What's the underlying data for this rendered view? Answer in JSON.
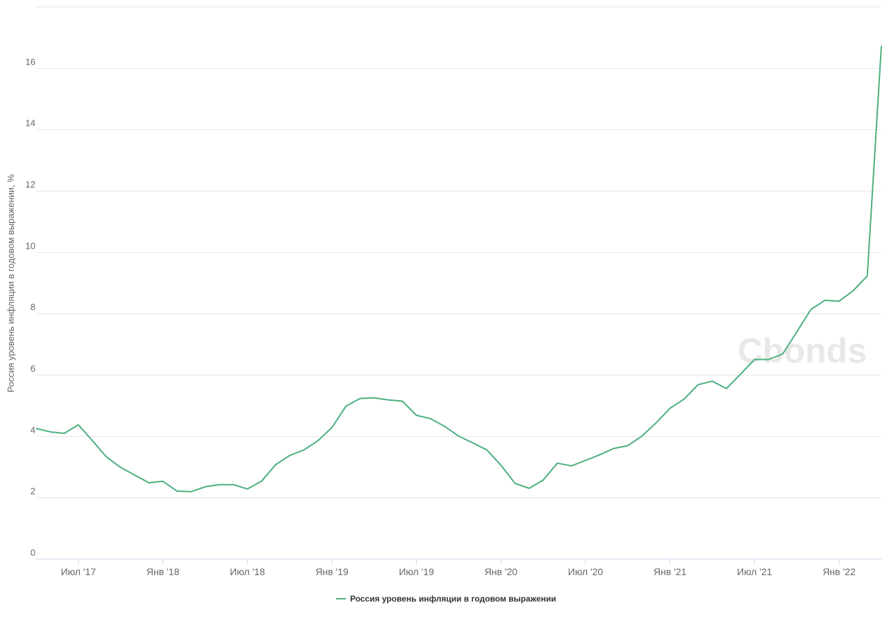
{
  "chart_data": {
    "type": "line",
    "ylabel": "Россия уровень инфляции в годовом выражении, %",
    "watermark": "Cbonds",
    "x": [
      "2017-04",
      "2017-05",
      "2017-06",
      "2017-07",
      "2017-08",
      "2017-09",
      "2017-10",
      "2017-11",
      "2017-12",
      "2018-01",
      "2018-02",
      "2018-03",
      "2018-04",
      "2018-05",
      "2018-06",
      "2018-07",
      "2018-08",
      "2018-09",
      "2018-10",
      "2018-11",
      "2018-12",
      "2019-01",
      "2019-02",
      "2019-03",
      "2019-04",
      "2019-05",
      "2019-06",
      "2019-07",
      "2019-08",
      "2019-09",
      "2019-10",
      "2019-11",
      "2019-12",
      "2020-01",
      "2020-02",
      "2020-03",
      "2020-04",
      "2020-05",
      "2020-06",
      "2020-07",
      "2020-08",
      "2020-09",
      "2020-10",
      "2020-11",
      "2020-12",
      "2021-01",
      "2021-02",
      "2021-03",
      "2021-04",
      "2021-05",
      "2021-06",
      "2021-07",
      "2021-08",
      "2021-09",
      "2021-10",
      "2021-11",
      "2021-12",
      "2022-01",
      "2022-02",
      "2022-03",
      "2022-04"
    ],
    "series": [
      {
        "name": "Россия уровень инфляции в годовом выражении",
        "color": "#4caf7d",
        "values": [
          4.26,
          4.15,
          4.1,
          4.38,
          3.86,
          3.33,
          2.99,
          2.74,
          2.49,
          2.54,
          2.22,
          2.2,
          2.36,
          2.43,
          2.43,
          2.29,
          2.54,
          3.08,
          3.38,
          3.56,
          3.86,
          4.29,
          4.99,
          5.24,
          5.26,
          5.19,
          5.15,
          4.69,
          4.58,
          4.33,
          4.01,
          3.79,
          3.56,
          3.06,
          2.47,
          2.31,
          2.58,
          3.13,
          3.04,
          3.22,
          3.4,
          3.61,
          3.7,
          4.01,
          4.44,
          4.92,
          5.22,
          5.69,
          5.8,
          5.56,
          6.03,
          6.51,
          6.51,
          6.69,
          7.41,
          8.14,
          8.44,
          8.41,
          8.75,
          9.23,
          16.73
        ]
      }
    ],
    "xlim": [
      "2017-04",
      "2022-04"
    ],
    "xticks": [
      {
        "value": "2017-07",
        "label": "Июл '17"
      },
      {
        "value": "2018-01",
        "label": "Янв '18"
      },
      {
        "value": "2018-07",
        "label": "Июл '18"
      },
      {
        "value": "2019-01",
        "label": "Янв '19"
      },
      {
        "value": "2019-07",
        "label": "Июл '19"
      },
      {
        "value": "2020-01",
        "label": "Янв '20"
      },
      {
        "value": "2020-07",
        "label": "Июл '20"
      },
      {
        "value": "2021-01",
        "label": "Янв '21"
      },
      {
        "value": "2021-07",
        "label": "Июл '21"
      },
      {
        "value": "2022-01",
        "label": "Янв '22"
      }
    ],
    "ylim": [
      0,
      18
    ],
    "yticks": [
      0,
      2,
      4,
      6,
      8,
      10,
      12,
      14,
      16
    ],
    "grid": true,
    "legend": "bottom"
  }
}
